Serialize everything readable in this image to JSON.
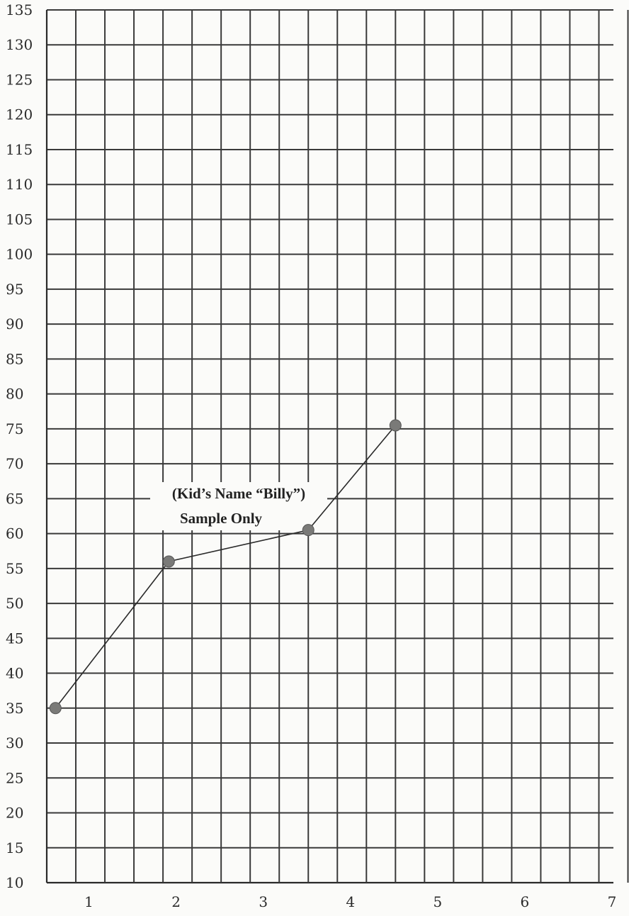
{
  "chart_data": {
    "type": "line",
    "title": "",
    "xlabel": "",
    "ylabel": "",
    "xlim": [
      0.5,
      7
    ],
    "ylim": [
      10,
      135
    ],
    "x_ticks": [
      "1",
      "2",
      "3",
      "4",
      "5",
      "6",
      "7"
    ],
    "y_ticks": [
      "135",
      "130",
      "125",
      "120",
      "115",
      "110",
      "105",
      "100",
      "95",
      "90",
      "85",
      "80",
      "75",
      "70",
      "65",
      "60",
      "55",
      "50",
      "45",
      "40",
      "35",
      "30",
      "25",
      "20",
      "15",
      "10"
    ],
    "grid": true,
    "series": [
      {
        "x": [
          0.6,
          1.9,
          3.5,
          4.5
        ],
        "y": [
          35,
          56,
          60.5,
          75.5
        ]
      }
    ],
    "annotations": [
      {
        "text": "(Kid’s Name “Billy”)"
      },
      {
        "text": "Sample Only"
      }
    ],
    "colors": {
      "grid": "#3a3a3a",
      "line": "#2a2a2a",
      "point": "#7a7a78"
    }
  }
}
